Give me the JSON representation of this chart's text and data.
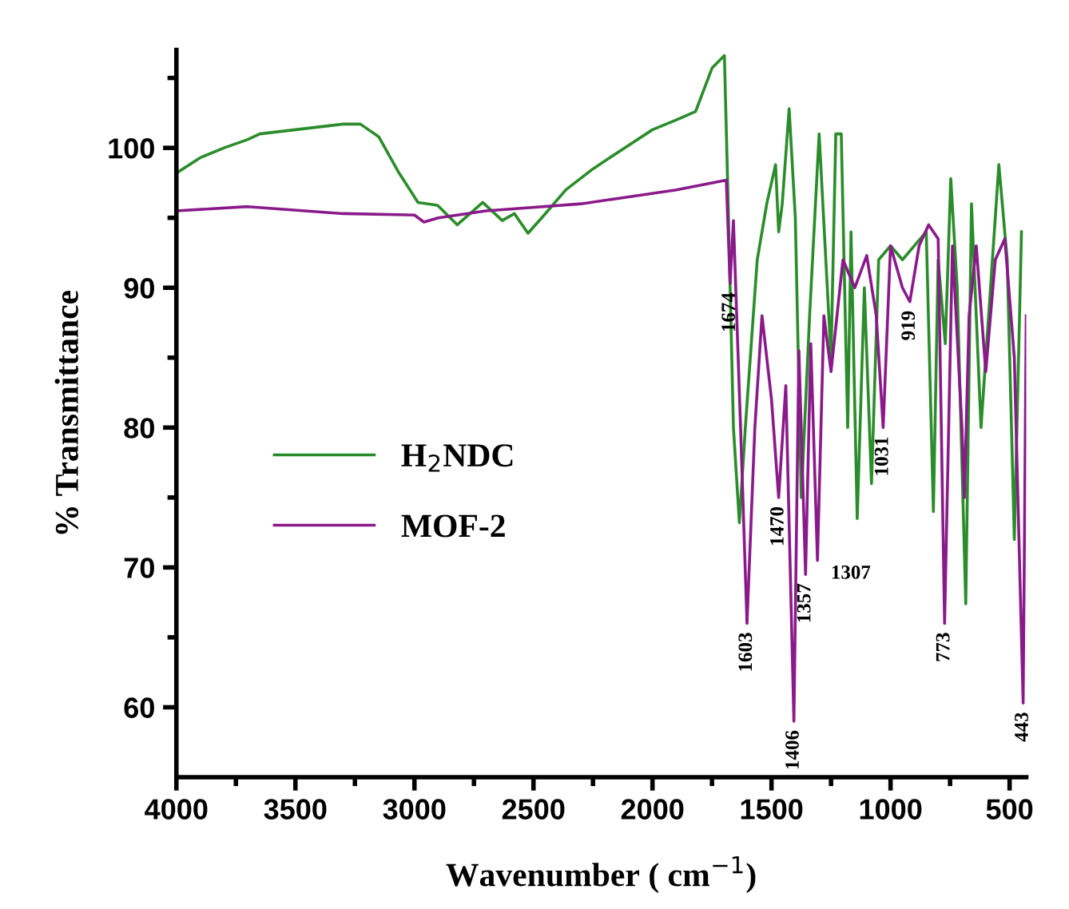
{
  "chart_data": {
    "type": "line",
    "xlabel": "Wavenumber ( cm$^{−1}$)",
    "ylabel": "% Transmittance",
    "xlim": [
      4000,
      430
    ],
    "ylim": [
      55,
      107
    ],
    "xticks": [
      4000,
      3500,
      3000,
      2500,
      2000,
      1500,
      1000,
      500
    ],
    "yticks": [
      60,
      70,
      80,
      90,
      100
    ],
    "grid": false,
    "legend": "left",
    "marker": "none",
    "line_style": "solid",
    "series": [
      {
        "name": "H$_{2}$NDC",
        "color": "#2a8c2a",
        "x": [
          4000,
          3900,
          3800,
          3700,
          3650,
          3500,
          3300,
          3227,
          3150,
          3068,
          2985,
          2903,
          2820,
          2713,
          2631,
          2580,
          2523,
          2450,
          2364,
          2250,
          2117,
          2000,
          1900,
          1819,
          1750,
          1698,
          1685,
          1660,
          1635,
          1610,
          1560,
          1520,
          1483,
          1470,
          1455,
          1426,
          1400,
          1375,
          1340,
          1300,
          1250,
          1230,
          1207,
          1180,
          1166,
          1140,
          1110,
          1080,
          1050,
          1000,
          950,
          900,
          850,
          820,
          800,
          770,
          747,
          720,
          684,
          660,
          620,
          580,
          545,
          510,
          480,
          450
        ],
        "values": [
          98.2,
          99.3,
          100.0,
          100.6,
          101.0,
          101.3,
          101.7,
          101.7,
          100.8,
          98.3,
          96.1,
          95.9,
          94.5,
          96.1,
          94.8,
          95.3,
          93.9,
          95.3,
          97.0,
          98.5,
          100.0,
          101.3,
          102.0,
          102.6,
          105.7,
          106.6,
          98.0,
          80.0,
          73.2,
          80.0,
          92.0,
          96.0,
          98.8,
          94.0,
          96.0,
          102.8,
          95.0,
          75.0,
          88.0,
          101.0,
          85.0,
          101.0,
          101.0,
          80.0,
          94.0,
          73.5,
          90.0,
          76.0,
          92.0,
          93.0,
          92.0,
          93.0,
          94.0,
          74.0,
          92.0,
          86.0,
          97.8,
          90.0,
          67.4,
          96.0,
          80.0,
          90.0,
          98.8,
          92.0,
          72.0,
          94.0
        ]
      },
      {
        "name": "MOF-2",
        "color": "#8a1a8a",
        "x": [
          4000,
          3700,
          3300,
          3000,
          2960,
          2900,
          2700,
          2300,
          2100,
          1900,
          1750,
          1690,
          1674,
          1660,
          1630,
          1603,
          1570,
          1540,
          1500,
          1470,
          1440,
          1406,
          1385,
          1357,
          1335,
          1307,
          1280,
          1250,
          1200,
          1150,
          1100,
          1060,
          1031,
          1000,
          950,
          919,
          880,
          840,
          800,
          773,
          740,
          700,
          690,
          670,
          640,
          600,
          560,
          520,
          480,
          443,
          430
        ],
        "values": [
          95.5,
          95.8,
          95.3,
          95.2,
          94.7,
          95.0,
          95.5,
          96.0,
          96.5,
          97.0,
          97.5,
          97.7,
          90.3,
          94.8,
          80.0,
          66.0,
          80.0,
          88.0,
          82.0,
          75.0,
          83.0,
          59.0,
          85.5,
          69.5,
          86.0,
          70.5,
          88.0,
          84.0,
          92.0,
          90.0,
          92.3,
          88.0,
          80.0,
          93.0,
          90.0,
          89.0,
          93.0,
          94.5,
          93.5,
          66.0,
          93.0,
          80.0,
          75.0,
          88.0,
          93.0,
          84.0,
          92.0,
          93.5,
          85.0,
          60.3,
          88.0
        ]
      }
    ],
    "annotations": [
      {
        "text": "1674",
        "x": 1674,
        "y": 90.3
      },
      {
        "text": "1603",
        "x": 1603,
        "y": 66.0
      },
      {
        "text": "1470",
        "x": 1470,
        "y": 75.0
      },
      {
        "text": "1406",
        "x": 1406,
        "y": 59.0
      },
      {
        "text": "1357",
        "x": 1357,
        "y": 69.5
      },
      {
        "text": "1307",
        "x": 1307,
        "y": 70.5
      },
      {
        "text": "1031",
        "x": 1031,
        "y": 80.0
      },
      {
        "text": "919",
        "x": 919,
        "y": 89.0
      },
      {
        "text": "773",
        "x": 773,
        "y": 66.0
      },
      {
        "text": "443",
        "x": 443,
        "y": 60.3
      }
    ]
  }
}
